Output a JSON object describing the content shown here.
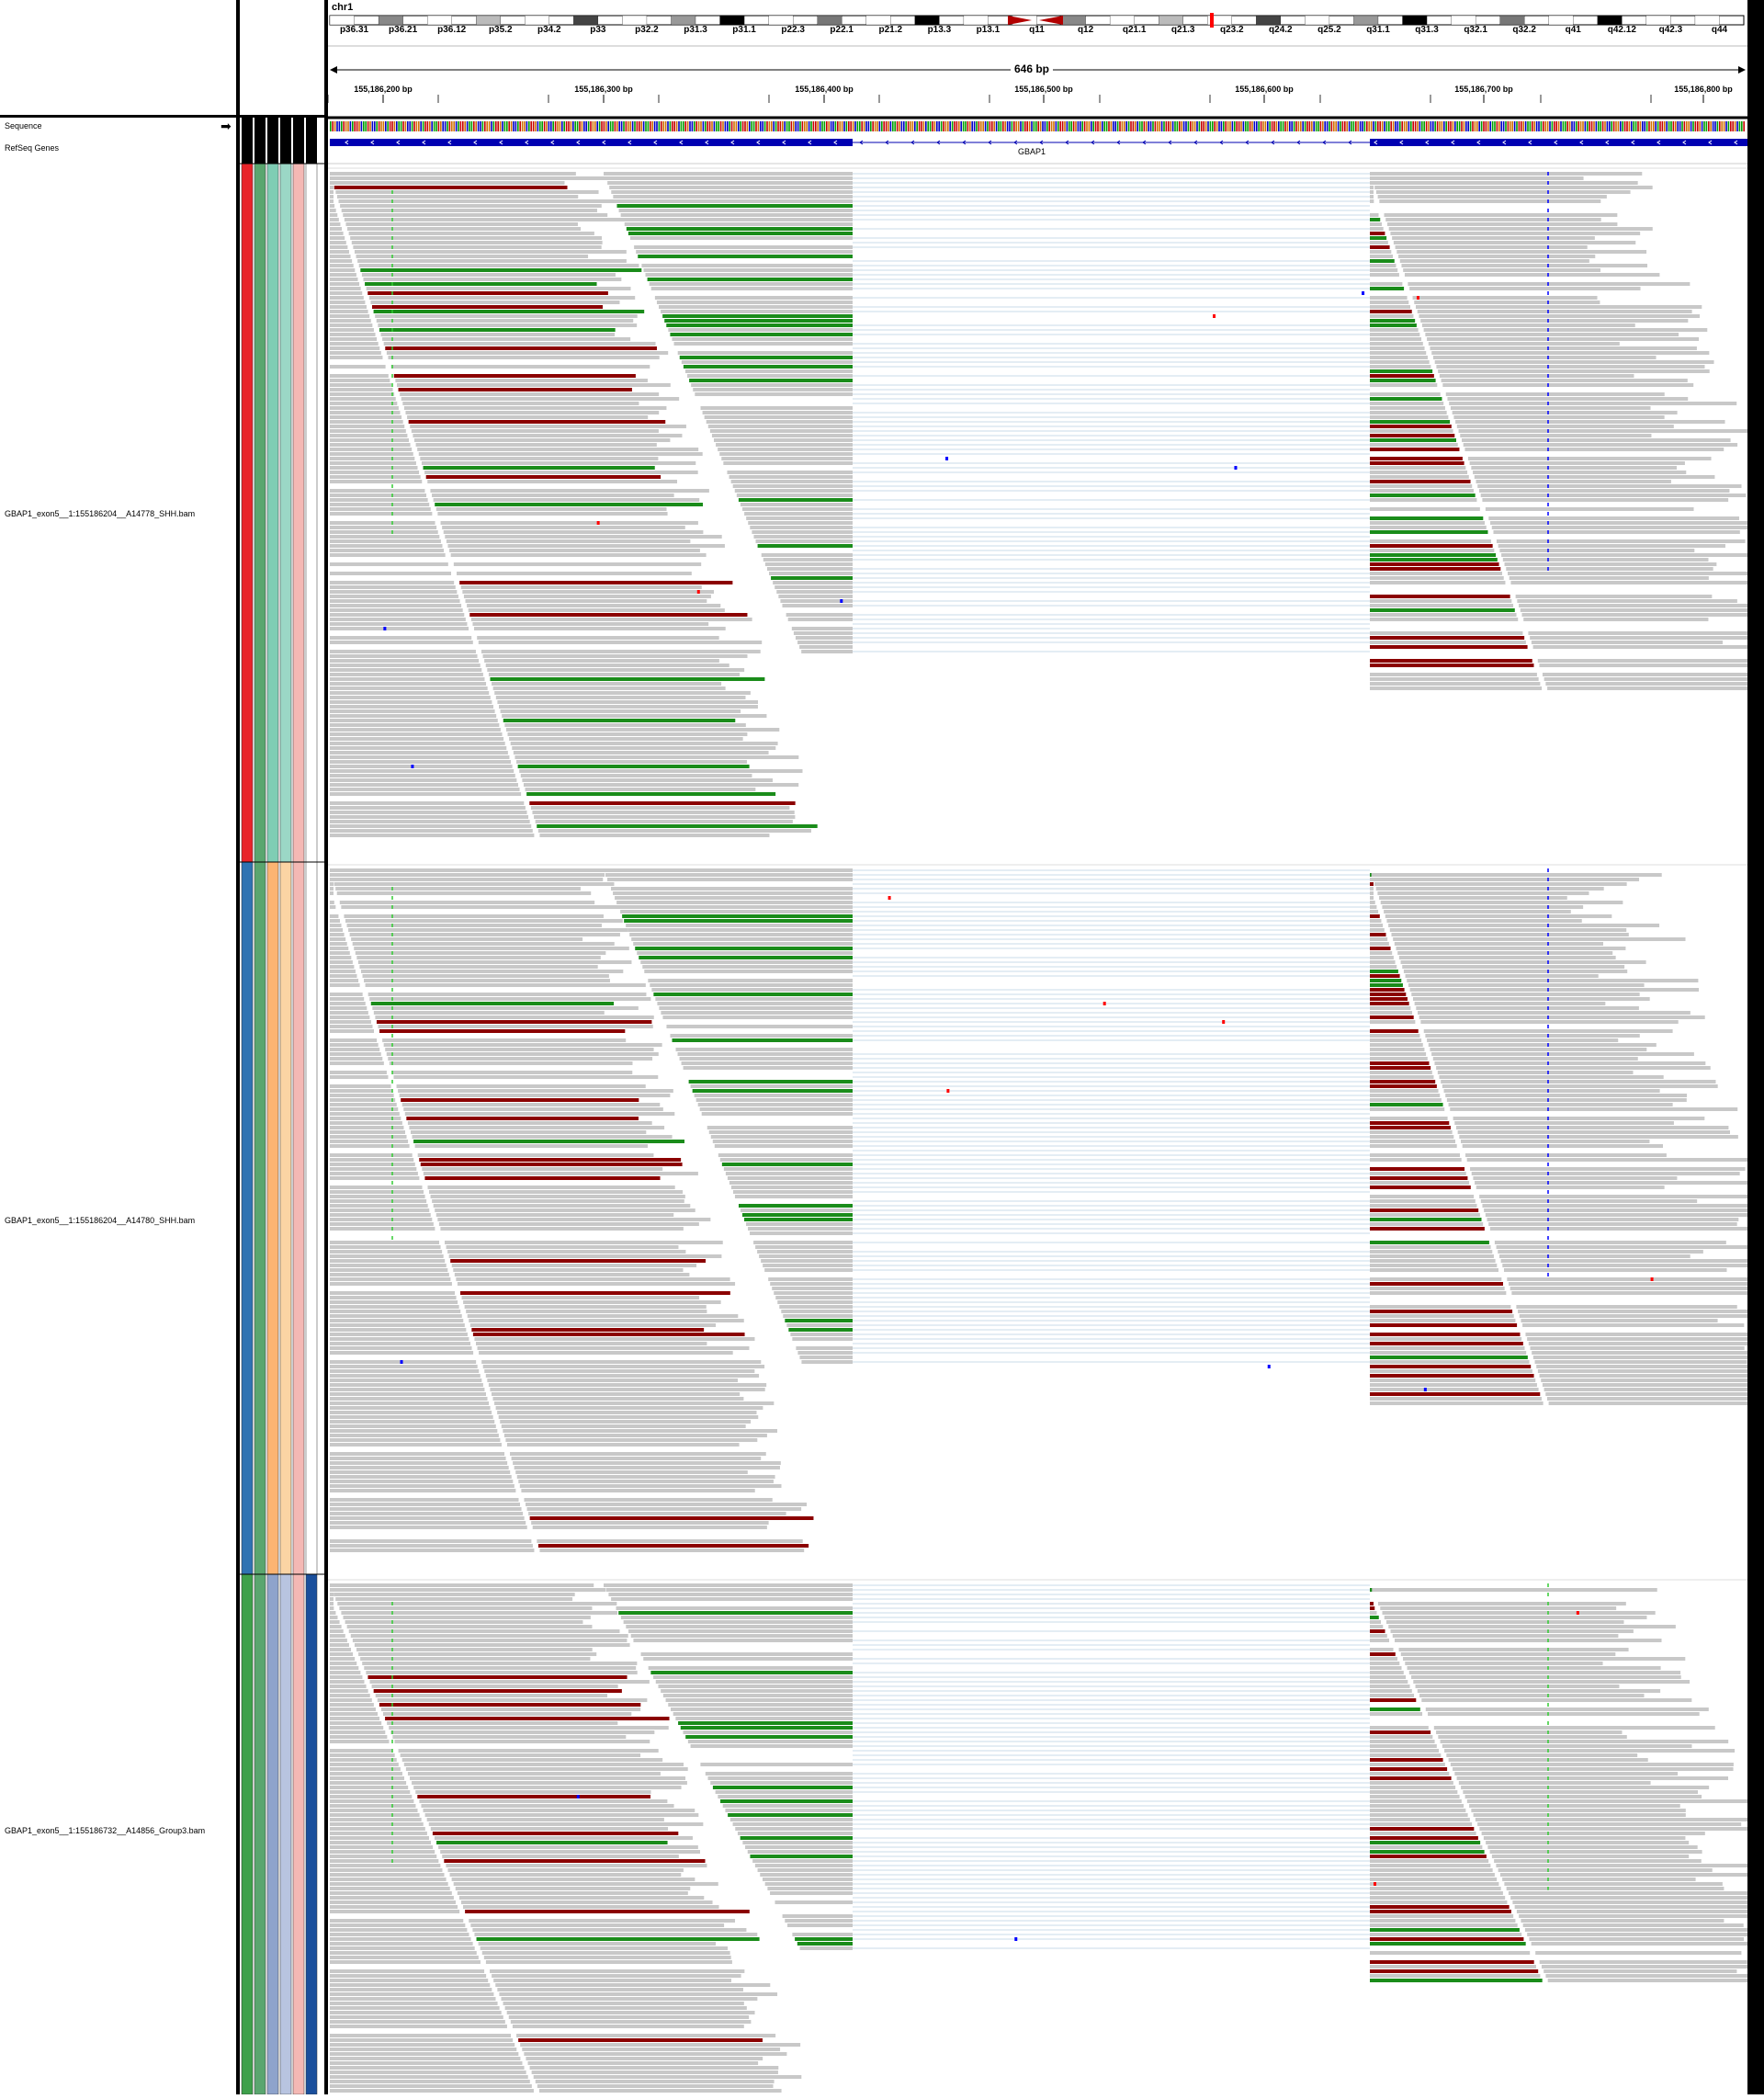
{
  "chromosome": "chr1",
  "span_label": "646 bp",
  "ideogram_bands": [
    "p36.31",
    "p36.21",
    "p36.12",
    "p35.2",
    "p34.2",
    "p33",
    "p32.2",
    "p31.3",
    "p31.1",
    "p22.3",
    "p22.1",
    "p21.2",
    "p13.3",
    "p13.1",
    "q11",
    "q12",
    "q21.1",
    "q21.3",
    "q23.2",
    "q24.2",
    "q25.2",
    "q31.1",
    "q31.3",
    "q32.1",
    "q32.2",
    "q41",
    "q42.12",
    "q42.3",
    "q44"
  ],
  "ruler_ticks": [
    "155,186,200 bp",
    "155,186,300 bp",
    "155,186,400 bp",
    "155,186,500 bp",
    "155,186,600 bp",
    "155,186,700 bp",
    "155,186,800 bp"
  ],
  "tracks": {
    "sequence_label": "Sequence",
    "refseq_label": "RefSeq Genes",
    "gene_name": "GBAP1"
  },
  "samples": [
    {
      "name": "GBAP1_exon5__1:155186204__A14778_SHH.bam",
      "attr_colors": [
        "#e8242a",
        "#5aa66f",
        "#7fcdb4",
        "#9bd7c6",
        "#f4b8b4",
        "#ffffff"
      ]
    },
    {
      "name": "GBAP1_exon5__1:155186204__A14780_SHH.bam",
      "attr_colors": [
        "#2f73b2",
        "#5aa66f",
        "#fcb472",
        "#fbd4a4",
        "#f4b8b4",
        "#ffffff"
      ]
    },
    {
      "name": "GBAP1_exon5__1:155186732__A14856_Group3.bam",
      "attr_colors": [
        "#3ea04b",
        "#5aa66f",
        "#8ea3cc",
        "#b8c4e0",
        "#f4b8b4",
        "#1a4f9c"
      ]
    }
  ],
  "colors": {
    "read": "#c8c8c8",
    "mismatch_read": "#8b0000",
    "green_read": "#1a8c1a",
    "junction": "#b8cfe0",
    "gene": "#0000b2"
  }
}
